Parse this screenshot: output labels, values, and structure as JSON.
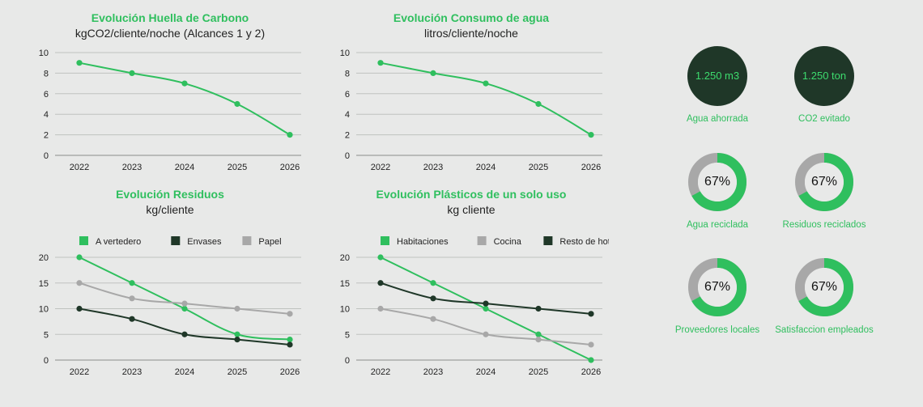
{
  "colors": {
    "green": "#2fbf5e",
    "dark": "#1f3728",
    "grey": "#a8a8a8",
    "grid": "#bfc2bf",
    "donut_track": "#a8a8a8"
  },
  "charts": {
    "carbon": {
      "title": "Evolución Huella de Carbono",
      "subtitle": "kgCO2/cliente/noche (Alcances 1 y 2)"
    },
    "water": {
      "title": "Evolución Consumo de agua",
      "subtitle": "litros/cliente/noche"
    },
    "waste": {
      "title": "Evolución Residuos",
      "subtitle": "kg/cliente"
    },
    "plastics": {
      "title": "Evolución Plásticos de un solo uso",
      "subtitle": "kg cliente"
    }
  },
  "chart_data": [
    {
      "id": "carbon",
      "type": "line",
      "title": "Evolución Huella de Carbono",
      "subtitle": "kgCO2/cliente/noche (Alcances 1 y 2)",
      "categories": [
        "2022",
        "2023",
        "2024",
        "2025",
        "2026"
      ],
      "yticks": [
        0,
        2,
        4,
        6,
        8,
        10
      ],
      "ylim": [
        0,
        10
      ],
      "legend": [],
      "series": [
        {
          "name": "Huella de Carbono",
          "color": "#2fbf5e",
          "values": [
            9,
            8,
            7,
            5,
            2
          ]
        }
      ]
    },
    {
      "id": "water",
      "type": "line",
      "title": "Evolución Consumo de agua",
      "subtitle": "litros/cliente/noche",
      "categories": [
        "2022",
        "2023",
        "2024",
        "2025",
        "2026"
      ],
      "yticks": [
        0,
        2,
        4,
        6,
        8,
        10
      ],
      "ylim": [
        0,
        10
      ],
      "legend": [],
      "series": [
        {
          "name": "Consumo de agua",
          "color": "#2fbf5e",
          "values": [
            9,
            8,
            7,
            5,
            2
          ]
        }
      ]
    },
    {
      "id": "waste",
      "type": "line",
      "title": "Evolución Residuos",
      "subtitle": "kg/cliente",
      "categories": [
        "2022",
        "2023",
        "2024",
        "2025",
        "2026"
      ],
      "yticks": [
        0,
        5,
        10,
        15,
        20
      ],
      "ylim": [
        0,
        20
      ],
      "legend": [
        "A vertedero",
        "Envases",
        "Papel"
      ],
      "series": [
        {
          "name": "A vertedero",
          "color": "#2fbf5e",
          "values": [
            20,
            15,
            10,
            5,
            4
          ]
        },
        {
          "name": "Envases",
          "color": "#1f3728",
          "values": [
            10,
            8,
            5,
            4,
            3
          ]
        },
        {
          "name": "Papel",
          "color": "#a8a8a8",
          "values": [
            15,
            12,
            11,
            10,
            9
          ]
        }
      ]
    },
    {
      "id": "plastics",
      "type": "line",
      "title": "Evolución Plásticos de un solo uso",
      "subtitle": "kg cliente",
      "categories": [
        "2022",
        "2023",
        "2024",
        "2025",
        "2026"
      ],
      "yticks": [
        0,
        5,
        10,
        15,
        20
      ],
      "ylim": [
        0,
        20
      ],
      "legend": [
        "Habitaciones",
        "Cocina",
        "Resto de hotel"
      ],
      "series": [
        {
          "name": "Habitaciones",
          "color": "#2fbf5e",
          "values": [
            20,
            15,
            10,
            5,
            0
          ]
        },
        {
          "name": "Cocina",
          "color": "#a8a8a8",
          "values": [
            10,
            8,
            5,
            4,
            3
          ]
        },
        {
          "name": "Resto de hotel",
          "color": "#1f3728",
          "values": [
            15,
            12,
            11,
            10,
            9
          ]
        }
      ]
    }
  ],
  "kpis": {
    "water_saved": {
      "value": "1.250 m3",
      "label": "Agua ahorrada"
    },
    "co2_avoided": {
      "value": "1.250 ton",
      "label": "CO2 evitado"
    }
  },
  "donuts": {
    "water_recycled": {
      "value": "67%",
      "percent": 67,
      "label": "Agua reciclada"
    },
    "waste_recycled": {
      "value": "67%",
      "percent": 67,
      "label": "Residuos reciclados"
    },
    "local_suppliers": {
      "value": "67%",
      "percent": 67,
      "label": "Proveedores locales"
    },
    "employee_satisfaction": {
      "value": "67%",
      "percent": 67,
      "label": "Satisfaccion empleados"
    }
  }
}
